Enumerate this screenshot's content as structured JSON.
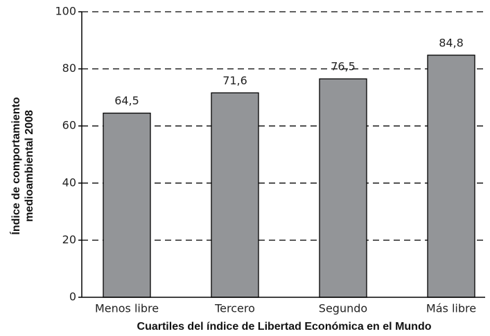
{
  "chart_data": {
    "type": "bar",
    "categories": [
      "Menos libre",
      "Tercero",
      "Segundo",
      "Más libre"
    ],
    "values": [
      64.5,
      71.6,
      76.5,
      84.8
    ],
    "value_labels": [
      "64,5",
      "71,6",
      "76,5",
      "84,8"
    ],
    "color": "#939598",
    "xlabel": "Cuartiles del índice de Libertad Económica en el Mundo",
    "ylabel": [
      "Índice de comportamiento",
      "medioambiental 2008"
    ],
    "ylim": [
      0,
      100
    ],
    "yticks": [
      0,
      20,
      40,
      60,
      80,
      100
    ],
    "grid": true
  }
}
